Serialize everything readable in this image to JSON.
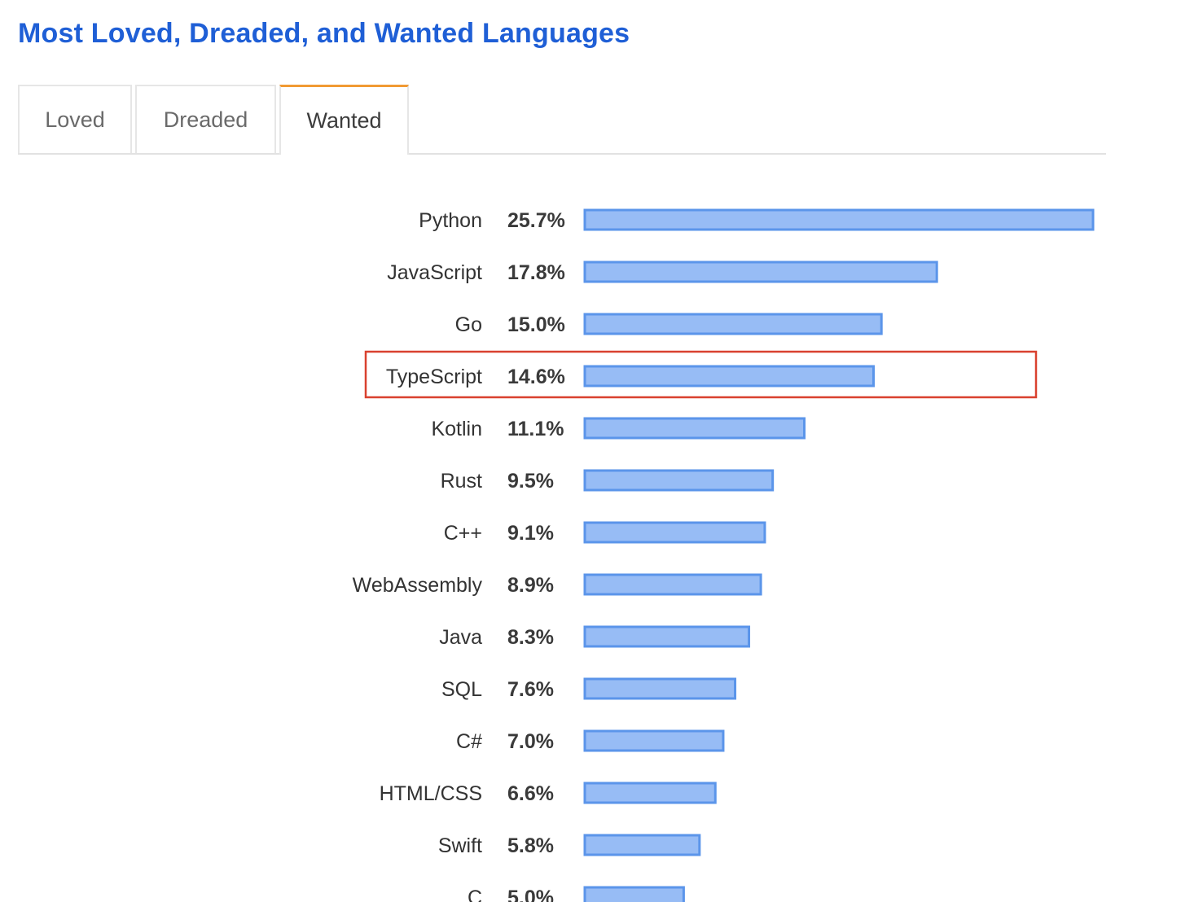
{
  "title": "Most Loved, Dreaded, and Wanted Languages",
  "tabs": [
    {
      "label": "Loved",
      "active": false
    },
    {
      "label": "Dreaded",
      "active": false
    },
    {
      "label": "Wanted",
      "active": true
    }
  ],
  "colors": {
    "title": "#1f5fd6",
    "tab_active_accent": "#f19a33",
    "bar_fill": "#97bcf5",
    "bar_stroke": "#5b95ea",
    "highlight": "#d9412f"
  },
  "highlighted_category": "TypeScript",
  "chart_data": {
    "type": "bar",
    "orientation": "horizontal",
    "categories": [
      "Python",
      "JavaScript",
      "Go",
      "TypeScript",
      "Kotlin",
      "Rust",
      "C++",
      "WebAssembly",
      "Java",
      "SQL",
      "C#",
      "HTML/CSS",
      "Swift",
      "C"
    ],
    "values": [
      25.7,
      17.8,
      15.0,
      14.6,
      11.1,
      9.5,
      9.1,
      8.9,
      8.3,
      7.6,
      7.0,
      6.6,
      5.8,
      5.0
    ],
    "value_labels": [
      "25.7%",
      "17.8%",
      "15.0%",
      "14.6%",
      "11.1%",
      "9.5%",
      "9.1%",
      "8.9%",
      "8.3%",
      "7.6%",
      "7.0%",
      "6.6%",
      "5.8%",
      "5.0%"
    ],
    "unit": "%",
    "xlim": [
      0,
      25.7
    ],
    "grid": false,
    "legend": "none"
  }
}
